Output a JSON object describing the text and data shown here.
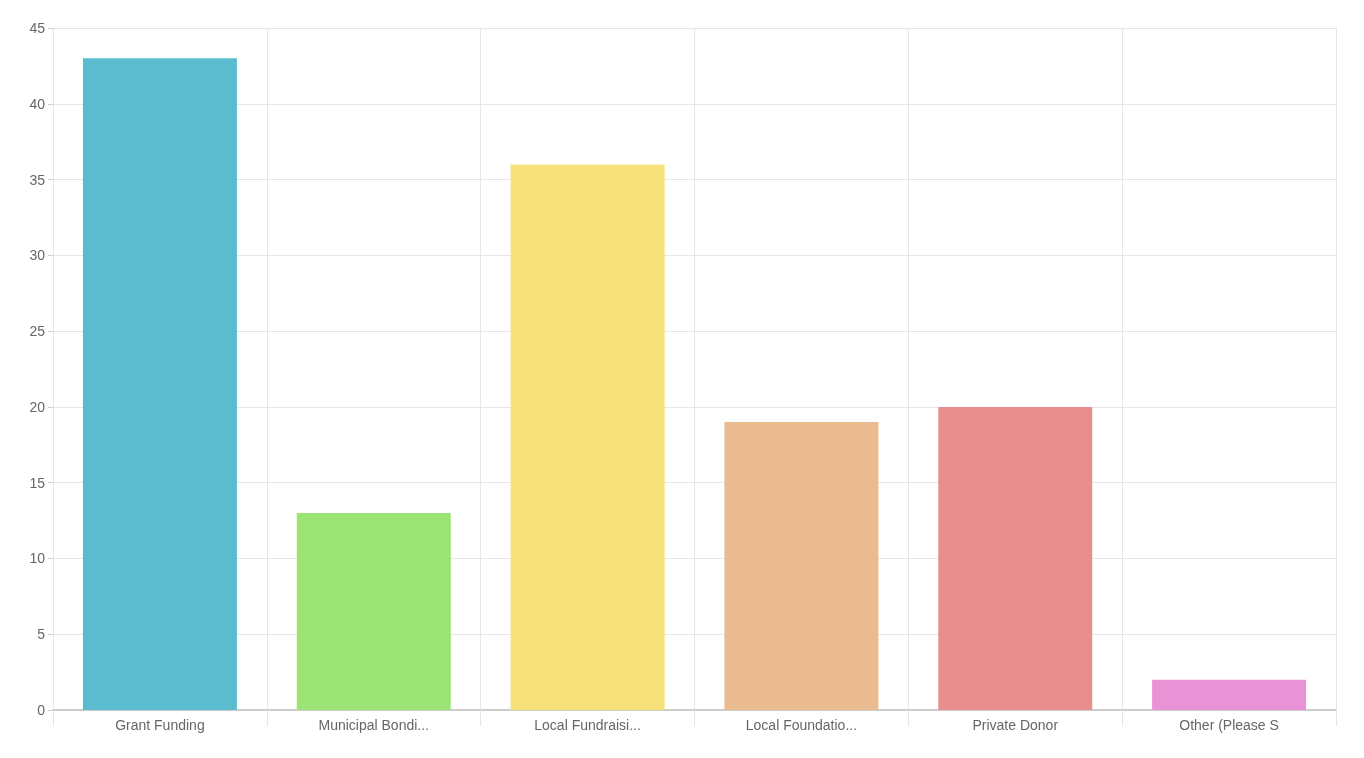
{
  "chart_data": {
    "type": "bar",
    "categories": [
      "Grant Funding",
      "Municipal Bondi...",
      "Local Fundraisi...",
      "Local Foundatio...",
      "Private Donor",
      "Other (Please S"
    ],
    "values": [
      43,
      13,
      36,
      19,
      20,
      2
    ],
    "colors": [
      "#5bbcd0",
      "#9be374",
      "#f7e17a",
      "#eabb8e",
      "#e88f8d",
      "#ea92d6"
    ],
    "ylim": [
      0,
      45
    ],
    "yticks": [
      0,
      5,
      10,
      15,
      20,
      25,
      30,
      35,
      40,
      45
    ],
    "grid": true
  }
}
